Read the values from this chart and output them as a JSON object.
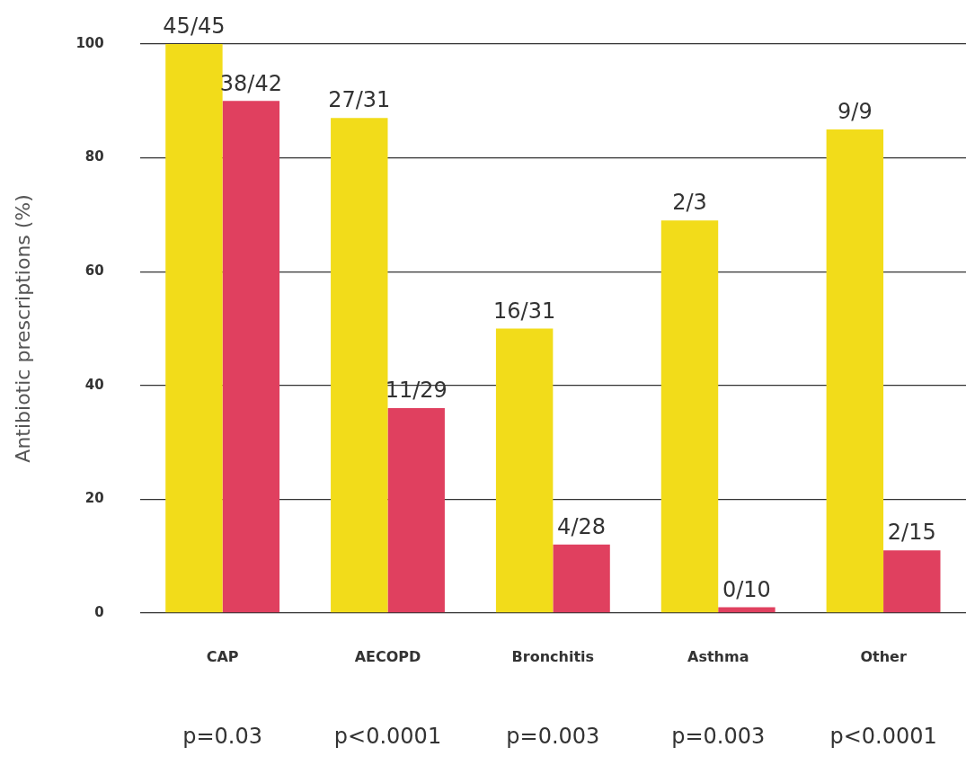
{
  "chart_data": {
    "type": "bar",
    "ylabel": "Antibiotic prescriptions (%)",
    "categories": [
      "CAP",
      "AECOPD",
      "Bronchitis",
      "Asthma",
      "Other"
    ],
    "series": [
      {
        "color": "#f2dc1a",
        "values": [
          100,
          87,
          50,
          69,
          85
        ]
      },
      {
        "color": "#e0405f",
        "values": [
          90,
          36,
          12,
          1,
          11
        ]
      }
    ],
    "ylim": [
      0,
      100
    ],
    "yticks": [
      0,
      20,
      40,
      60,
      80,
      100
    ],
    "grid": "y",
    "legend": false,
    "annotations": [
      {
        "text": "45/45",
        "x": "CAP",
        "y": 100
      },
      {
        "text": "38/42",
        "x": "CAP",
        "y": 90
      },
      {
        "text": "27/31",
        "x": "AECOPD",
        "y": 87
      },
      {
        "text": "11/29",
        "x": "AECOPD",
        "y": 36
      },
      {
        "text": "16/31",
        "x": "Bronchitis",
        "y": 50
      },
      {
        "text": "4/28",
        "x": "Bronchitis",
        "y": 12
      },
      {
        "text": "2/3",
        "x": "Asthma",
        "y": 69
      },
      {
        "text": "0/10",
        "x": "Asthma",
        "y": 1
      },
      {
        "text": "9/9",
        "x": "Other",
        "y": 85
      },
      {
        "text": "2/15",
        "x": "Other",
        "y": 11
      },
      "p=0.03",
      "p<0.0001",
      "p=0.003",
      "p=0.003",
      "p<0.0001"
    ]
  }
}
